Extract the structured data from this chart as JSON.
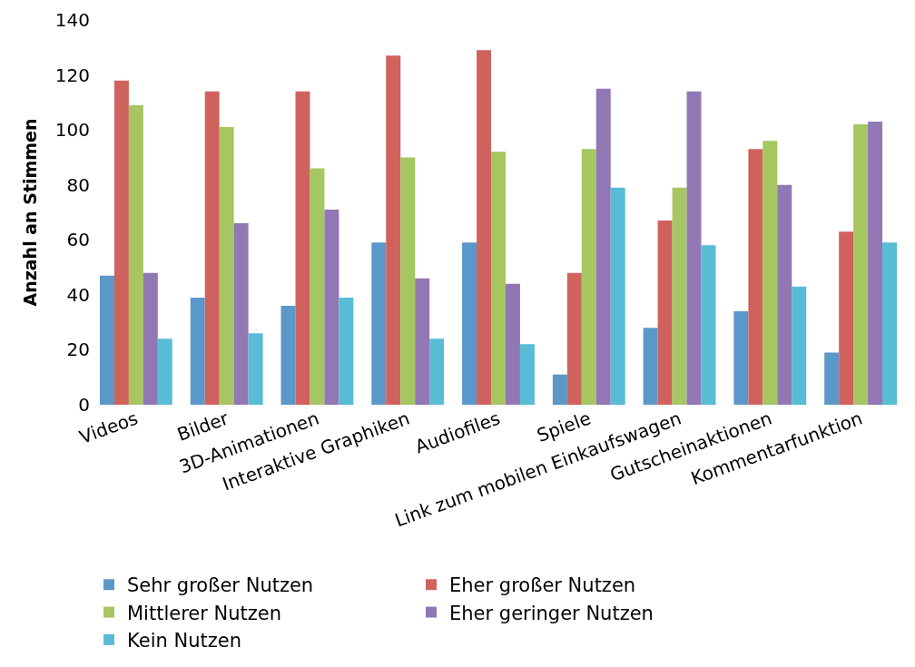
{
  "chart_data": {
    "type": "bar",
    "ylabel": "Anzahl an Stimmen",
    "categories": [
      "Videos",
      "Bilder",
      "3D-Animationen",
      "Interaktive Graphiken",
      "Audiofiles",
      "Spiele",
      "Link zum mobilen Einkaufswagen",
      "Gutscheinaktionen",
      "Kommentarfunktion"
    ],
    "series": [
      {
        "name": "Sehr großer Nutzen",
        "color": "#5b97c9",
        "values": [
          47,
          39,
          36,
          59,
          59,
          11,
          28,
          34,
          19
        ]
      },
      {
        "name": "Eher großer Nutzen",
        "color": "#d0625e",
        "values": [
          118,
          114,
          114,
          127,
          129,
          48,
          67,
          93,
          63
        ]
      },
      {
        "name": "Mittlerer Nutzen",
        "color": "#a5c661",
        "values": [
          109,
          101,
          86,
          90,
          92,
          93,
          79,
          96,
          102
        ]
      },
      {
        "name": "Eher geringer Nutzen",
        "color": "#9277b5",
        "values": [
          48,
          66,
          71,
          46,
          44,
          115,
          114,
          80,
          103
        ]
      },
      {
        "name": "Kein Nutzen",
        "color": "#58bcd5",
        "values": [
          24,
          26,
          39,
          24,
          22,
          79,
          58,
          43,
          59
        ]
      }
    ],
    "ylim": [
      0,
      140
    ],
    "yticks": [
      0,
      20,
      40,
      60,
      80,
      100,
      120,
      140
    ],
    "legend": "bottom"
  }
}
